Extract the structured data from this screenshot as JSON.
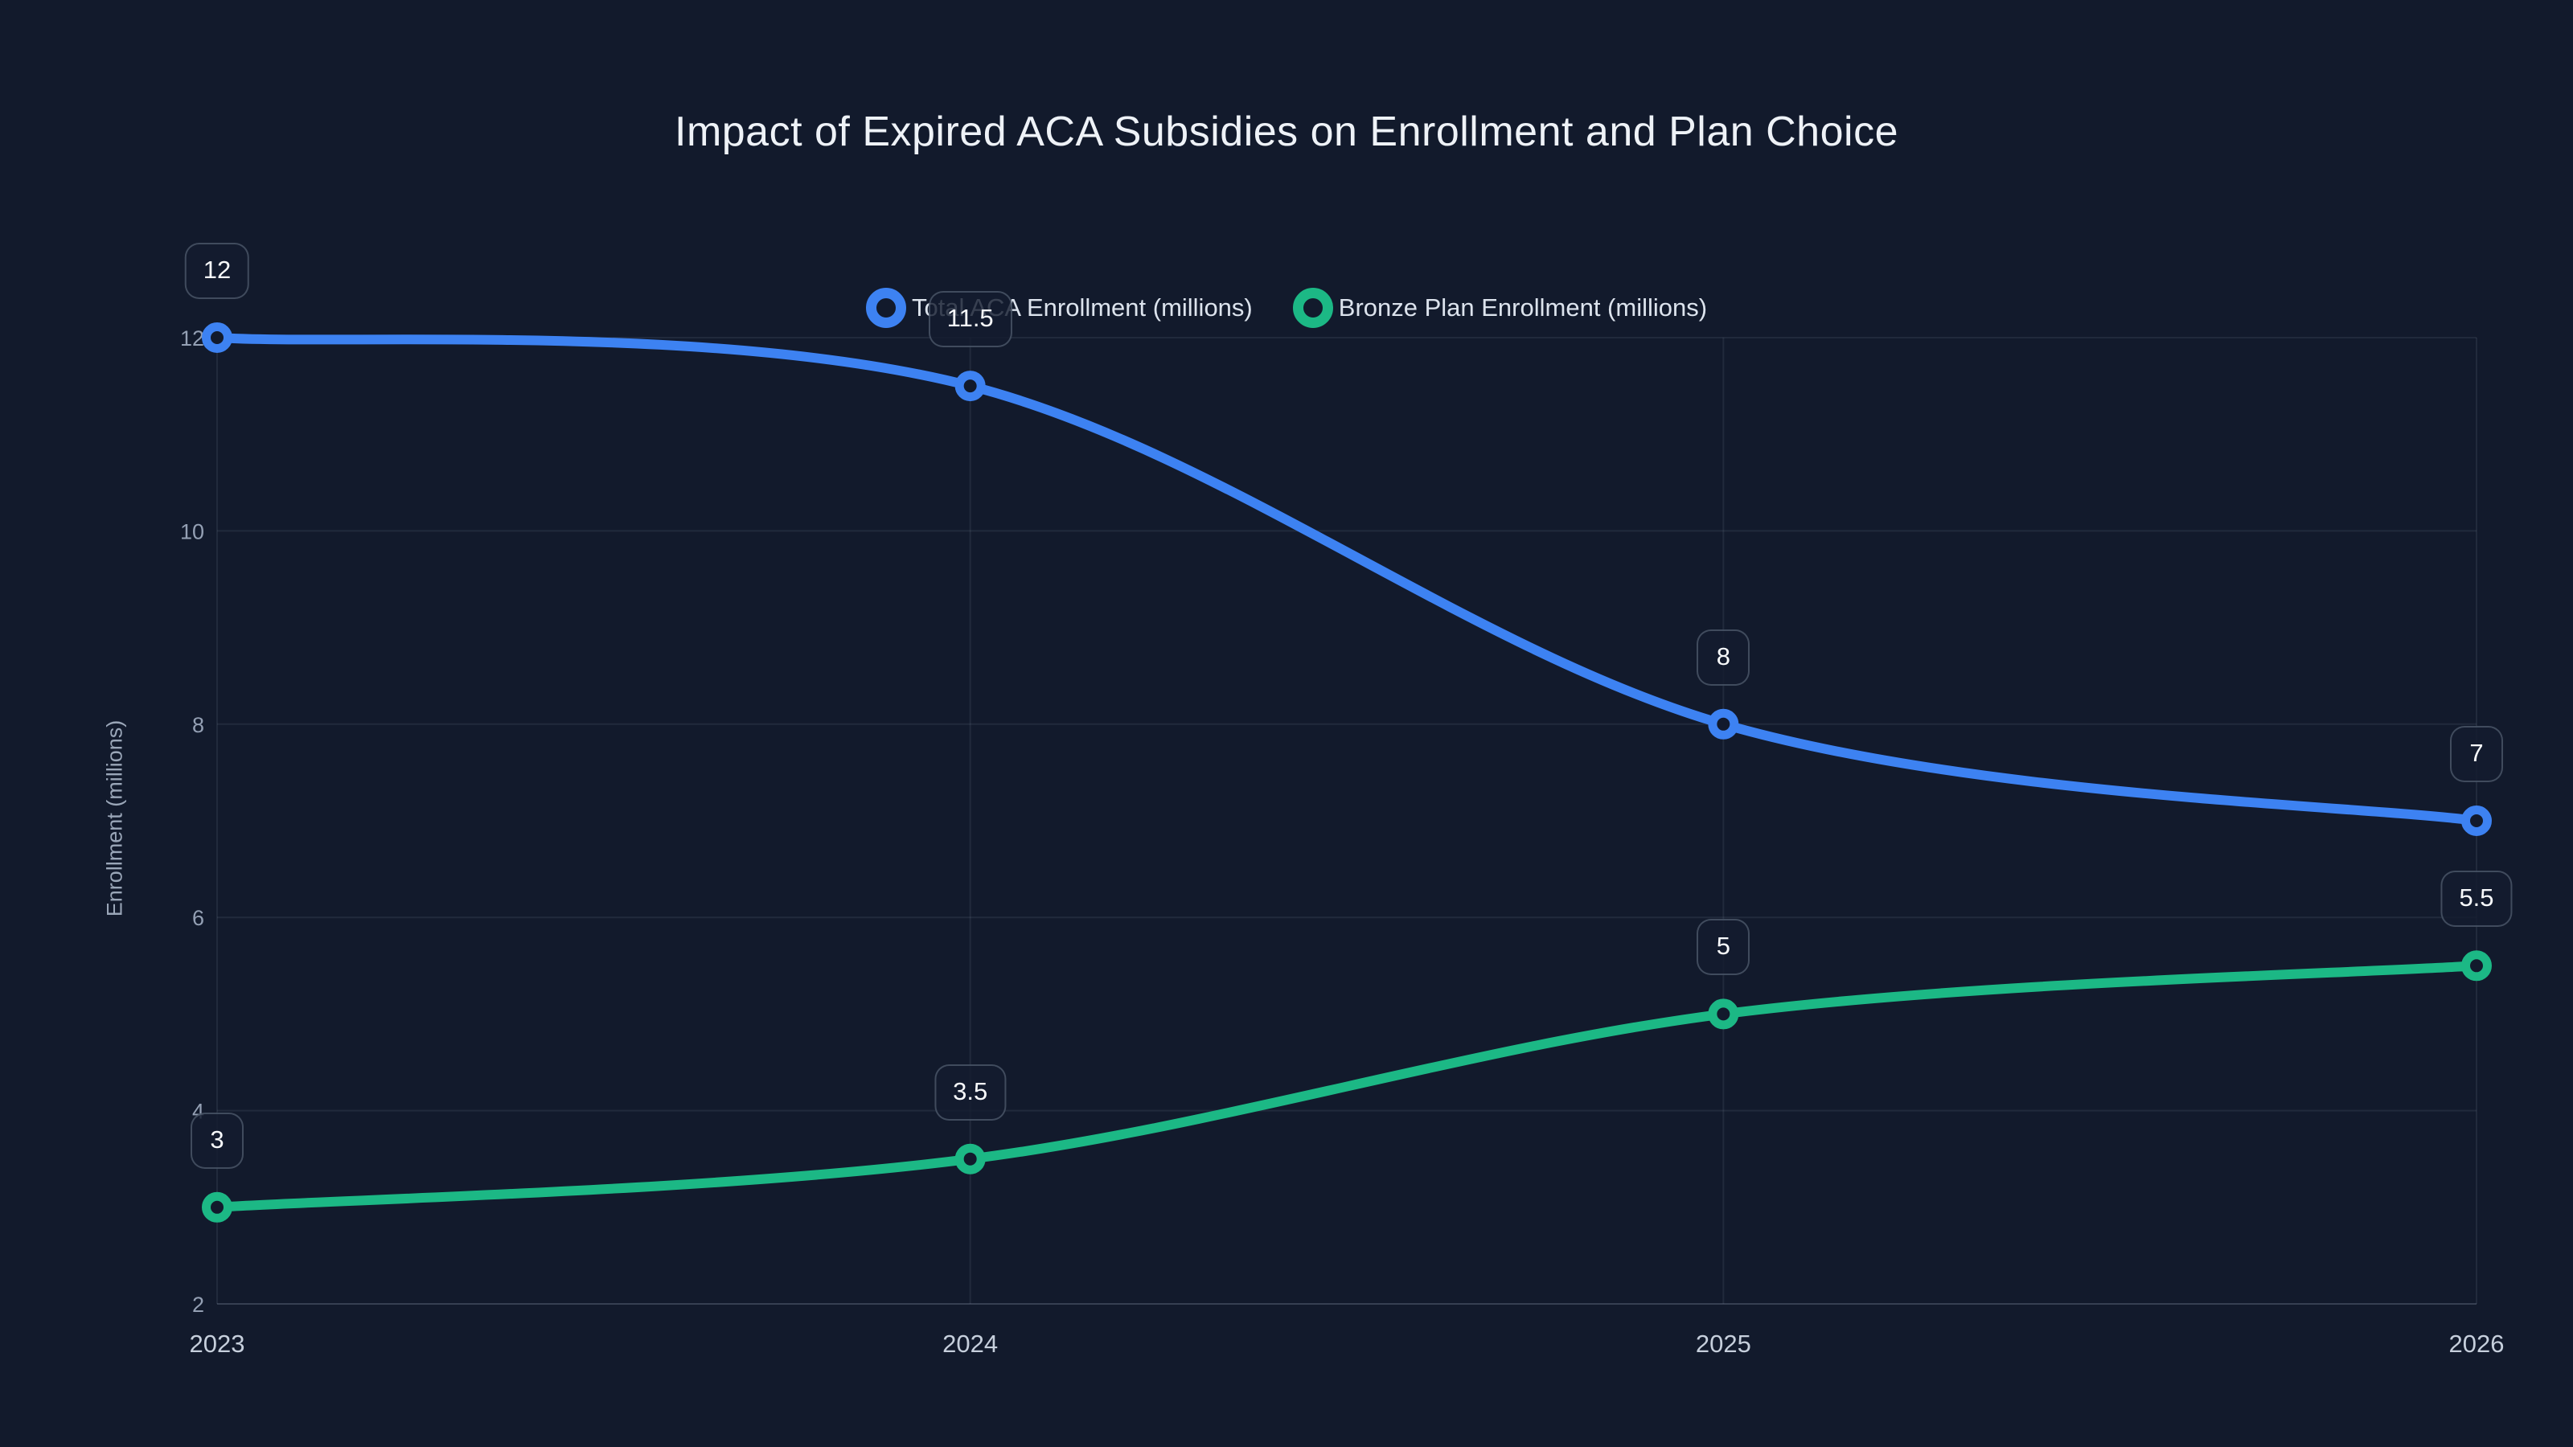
{
  "title": "Impact of Expired ACA Subsidies on Enrollment and Plan Choice",
  "colors": {
    "background": "#121a2c",
    "title_text": "#eef2f7",
    "blue_series": "#3d82f2",
    "green_series": "#1cb885",
    "grid_line": "rgba(148,163,184,0.12)",
    "axis_line": "rgba(148,163,184,0.28)",
    "y_tick_text": "#94a0b4",
    "x_tick_text": "#c6cfdc",
    "axis_title_text": "#9aa6b8",
    "legend_text": "#dce3ed",
    "label_box_bg": "rgba(20,28,46,0.82)",
    "label_box_border": "rgba(148,163,184,0.35)",
    "label_box_text": "#f8fafc",
    "marker_fill": "#121a2c"
  },
  "chart_data": {
    "type": "line",
    "title": "Impact of Expired ACA Subsidies on Enrollment and Plan Choice",
    "xlabel": "",
    "ylabel": "Enrollment (millions)",
    "x": [
      2023,
      2024,
      2025,
      2026
    ],
    "x_tick_labels": [
      "2023",
      "2024",
      "2025",
      "2026"
    ],
    "yticks": [
      2,
      4,
      6,
      8,
      10,
      12
    ],
    "y_tick_labels": [
      "2",
      "4",
      "6",
      "8",
      "10",
      "12"
    ],
    "ylim": [
      2,
      12
    ],
    "grid": true,
    "legend_position": "top-center",
    "series": [
      {
        "name": "Total ACA Enrollment (millions)",
        "color": "#3d82f2",
        "values": [
          12,
          11.5,
          8,
          7
        ],
        "point_labels": [
          "12",
          "11.5",
          "8",
          "7"
        ]
      },
      {
        "name": "Bronze Plan Enrollment (millions)",
        "color": "#1cb885",
        "values": [
          3,
          3.5,
          5,
          5.5
        ],
        "point_labels": [
          "3",
          "3.5",
          "5",
          "5.5"
        ]
      }
    ]
  }
}
